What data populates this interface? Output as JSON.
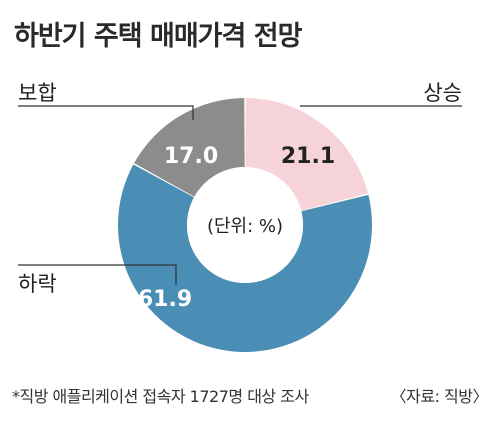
{
  "chart_data": {
    "type": "pie",
    "title": "하반기 주택 매매가격 전망",
    "center_label": "(단위: %)",
    "categories": [
      "상승",
      "하락",
      "보합"
    ],
    "values": [
      21.1,
      61.9,
      17.0
    ],
    "value_labels": [
      "21.1",
      "61.9",
      "17.0"
    ],
    "colors": [
      "#f6d3d8",
      "#4a8db5",
      "#8c8c8c"
    ],
    "label_colors": [
      "#222222",
      "#ffffff",
      "#ffffff"
    ]
  },
  "footnote": "*직방 애플리케이션 접속자 1727명 대상 조사",
  "source": "〈자료: 직방〉"
}
